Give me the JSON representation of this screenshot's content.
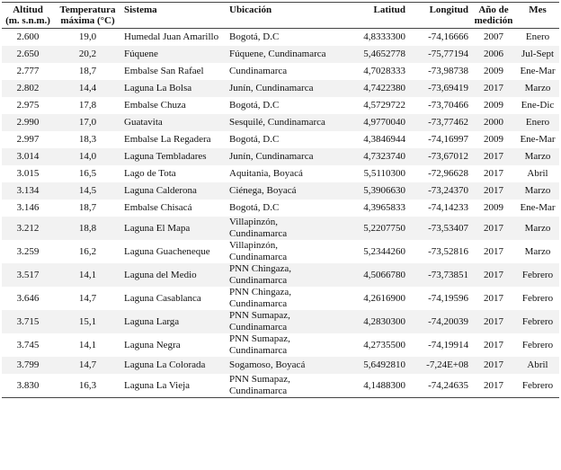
{
  "table": {
    "headers": [
      "Altitud\n(m. s.n.m.)",
      "Temperatura\nmáxima (°C)",
      "Sistema",
      "Ubicación",
      "Latitud",
      "Longitud",
      "Año de\nmedición",
      "Mes"
    ],
    "rows": [
      [
        "2.600",
        "19,0",
        "Humedal Juan Amarillo",
        "Bogotá, D.C",
        "4,8333300",
        "-74,16666",
        "2007",
        "Enero"
      ],
      [
        "2.650",
        "20,2",
        "Fúquene",
        "Fúquene, Cundinamarca",
        "5,4652778",
        "-75,77194",
        "2006",
        "Jul-Sept"
      ],
      [
        "2.777",
        "18,7",
        "Embalse San Rafael",
        "Cundinamarca",
        "4,7028333",
        "-73,98738",
        "2009",
        "Ene-Mar"
      ],
      [
        "2.802",
        "14,4",
        "Laguna La Bolsa",
        "Junín, Cundinamarca",
        "4,7422380",
        "-73,69419",
        "2017",
        "Marzo"
      ],
      [
        "2.975",
        "17,8",
        "Embalse Chuza",
        "Bogotá, D.C",
        "4,5729722",
        "-73,70466",
        "2009",
        "Ene-Dic"
      ],
      [
        "2.990",
        "17,0",
        "Guatavita",
        "Sesquilé, Cundinamarca",
        "4,9770040",
        "-73,77462",
        "2000",
        "Enero"
      ],
      [
        "2.997",
        "18,3",
        "Embalse La Regadera",
        "Bogotá, D.C",
        "4,3846944",
        "-74,16997",
        "2009",
        "Ene-Mar"
      ],
      [
        "3.014",
        "14,0",
        "Laguna Tembladares",
        "Junín, Cundinamarca",
        "4,7323740",
        "-73,67012",
        "2017",
        "Marzo"
      ],
      [
        "3.015",
        "16,5",
        "Lago de Tota",
        "Aquitania, Boyacá",
        "5,5110300",
        "-72,96628",
        "2017",
        "Abril"
      ],
      [
        "3.134",
        "14,5",
        "Laguna Calderona",
        "Ciénega, Boyacá",
        "5,3906630",
        "-73,24370",
        "2017",
        "Marzo"
      ],
      [
        "3.146",
        "18,7",
        "Embalse Chisacá",
        "Bogotá, D.C",
        "4,3965833",
        "-74,14233",
        "2009",
        "Ene-Mar"
      ],
      [
        "3.212",
        "18,8",
        "Laguna El Mapa",
        "Villapinzón,\nCundinamarca",
        "5,2207750",
        "-73,53407",
        "2017",
        "Marzo"
      ],
      [
        "3.259",
        "16,2",
        "Laguna Guacheneque",
        "Villapinzón,\nCundinamarca",
        "5,2344260",
        "-73,52816",
        "2017",
        "Marzo"
      ],
      [
        "3.517",
        "14,1",
        "Laguna del Medio",
        "PNN Chingaza,\nCundinamarca",
        "4,5066780",
        "-73,73851",
        "2017",
        "Febrero"
      ],
      [
        "3.646",
        "14,7",
        "Laguna Casablanca",
        "PNN Chingaza,\nCundinamarca",
        "4,2616900",
        "-74,19596",
        "2017",
        "Febrero"
      ],
      [
        "3.715",
        "15,1",
        "Laguna Larga",
        "PNN Sumapaz,\nCundinamarca",
        "4,2830300",
        "-74,20039",
        "2017",
        "Febrero"
      ],
      [
        "3.745",
        "14,1",
        "Laguna Negra",
        "PNN Sumapaz,\nCundinamarca",
        "4,2735500",
        "-74,19914",
        "2017",
        "Febrero"
      ],
      [
        "3.799",
        "14,7",
        "Laguna La Colorada",
        "Sogamoso, Boyacá",
        "5,6492810",
        "-7,24E+08",
        "2017",
        "Abril"
      ],
      [
        "3.830",
        "16,3",
        "Laguna La Vieja",
        "PNN Sumapaz,\nCundinamarca",
        "4,1488300",
        "-74,24635",
        "2017",
        "Febrero"
      ]
    ]
  }
}
